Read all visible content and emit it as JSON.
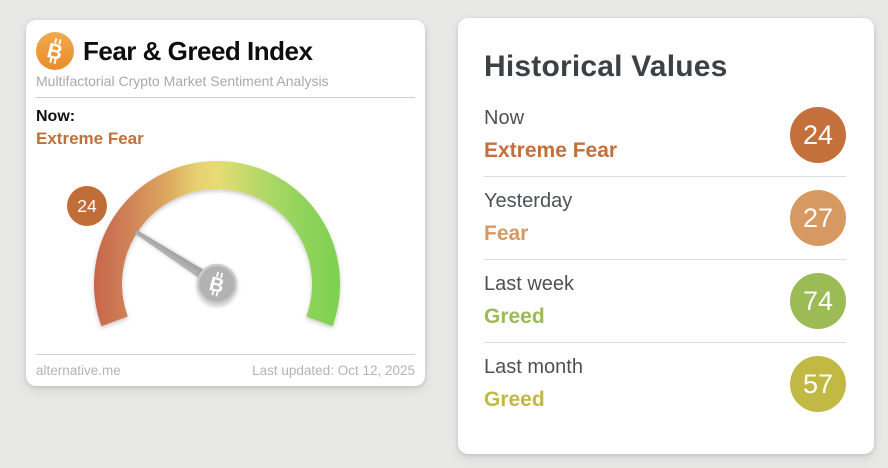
{
  "page": {
    "background": "#e8e8e6"
  },
  "fear_greed_card": {
    "title": "Fear & Greed Index",
    "subtitle": "Multifactorial Crypto Market Sentiment Analysis",
    "now_label": "Now:",
    "now_status": "Extreme Fear",
    "now_status_color": "#c1703c",
    "logo_color": "#ee9b3e",
    "source": "alternative.me",
    "last_updated": "Last updated: Oct 12, 2025"
  },
  "gauge": {
    "value": 24,
    "min": 0,
    "max": 100,
    "badge_color": "#c06d38",
    "needle_color": "#a9a9a9",
    "hub_color": "#b2b2b2",
    "gradient": [
      "#c8684c",
      "#d08057",
      "#dda95f",
      "#e6d271",
      "#e7dc73",
      "#b5d868",
      "#90d45c",
      "#7fd14f"
    ]
  },
  "historical": {
    "title": "Historical Values",
    "rows": [
      {
        "label": "Now",
        "status": "Extreme Fear",
        "value": "24",
        "color": "#c4703c"
      },
      {
        "label": "Yesterday",
        "status": "Fear",
        "value": "27",
        "color": "#d79962"
      },
      {
        "label": "Last week",
        "status": "Greed",
        "value": "74",
        "color": "#9bbb55"
      },
      {
        "label": "Last month",
        "status": "Greed",
        "value": "57",
        "color": "#c2b944"
      }
    ]
  }
}
